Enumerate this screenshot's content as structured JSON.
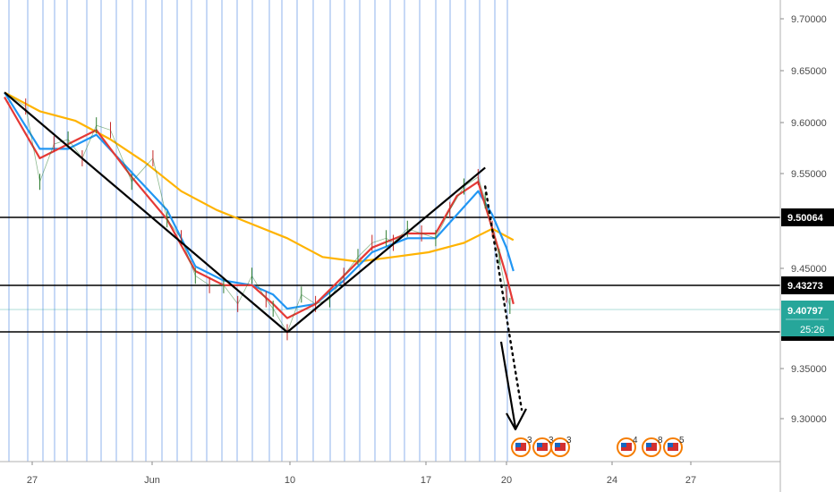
{
  "chart_data": {
    "type": "line",
    "title": "",
    "xlabel": "",
    "ylabel": "",
    "x_tick_labels": [
      "27",
      "Jun",
      "10",
      "17",
      "20",
      "24",
      "27"
    ],
    "y_ticks": [
      "9.70000",
      "9.65000",
      "9.60000",
      "9.55000",
      "9.45000",
      "9.35000",
      "9.30000"
    ],
    "ylim": [
      9.25,
      9.72
    ],
    "grid": "vertical blue session lines",
    "price_path": [
      [
        0,
        9.635
      ],
      [
        3,
        9.62
      ],
      [
        5,
        9.54
      ],
      [
        7,
        9.58
      ],
      [
        9,
        9.585
      ],
      [
        11,
        9.565
      ],
      [
        13,
        9.6
      ],
      [
        15,
        9.595
      ],
      [
        18,
        9.54
      ],
      [
        21,
        9.565
      ],
      [
        23,
        9.5
      ],
      [
        25,
        9.48
      ],
      [
        27,
        9.44
      ],
      [
        29,
        9.43
      ],
      [
        31,
        9.43
      ],
      [
        33,
        9.41
      ],
      [
        35,
        9.44
      ],
      [
        37,
        9.415
      ],
      [
        38,
        9.405
      ],
      [
        40,
        9.38
      ],
      [
        42,
        9.42
      ],
      [
        44,
        9.41
      ],
      [
        46,
        9.415
      ],
      [
        48,
        9.44
      ],
      [
        50,
        9.46
      ],
      [
        52,
        9.475
      ],
      [
        54,
        9.48
      ],
      [
        55,
        9.475
      ],
      [
        57,
        9.49
      ],
      [
        59,
        9.485
      ],
      [
        61,
        9.48
      ],
      [
        63,
        9.51
      ],
      [
        65,
        9.535
      ],
      [
        67,
        9.545
      ],
      [
        68,
        9.52
      ],
      [
        69,
        9.49
      ],
      [
        70,
        9.46
      ],
      [
        71,
        9.42
      ],
      [
        71.5,
        9.408
      ]
    ],
    "series": [
      {
        "name": "",
        "color": "#e53935",
        "role": "fast moving average",
        "values": [
          [
            0,
            9.63
          ],
          [
            5,
            9.565
          ],
          [
            9,
            9.58
          ],
          [
            13,
            9.595
          ],
          [
            18,
            9.545
          ],
          [
            23,
            9.5
          ],
          [
            27,
            9.445
          ],
          [
            31,
            9.43
          ],
          [
            35,
            9.43
          ],
          [
            38,
            9.41
          ],
          [
            40,
            9.395
          ],
          [
            44,
            9.41
          ],
          [
            48,
            9.44
          ],
          [
            52,
            9.47
          ],
          [
            57,
            9.485
          ],
          [
            61,
            9.485
          ],
          [
            64,
            9.525
          ],
          [
            67,
            9.54
          ],
          [
            69,
            9.49
          ],
          [
            71,
            9.44
          ],
          [
            72,
            9.41
          ]
        ]
      },
      {
        "name": "",
        "color": "#2196f3",
        "role": "medium moving average",
        "values": [
          [
            0,
            9.635
          ],
          [
            5,
            9.575
          ],
          [
            9,
            9.575
          ],
          [
            13,
            9.59
          ],
          [
            18,
            9.55
          ],
          [
            23,
            9.51
          ],
          [
            27,
            9.45
          ],
          [
            31,
            9.435
          ],
          [
            35,
            9.43
          ],
          [
            38,
            9.42
          ],
          [
            40,
            9.405
          ],
          [
            44,
            9.41
          ],
          [
            48,
            9.435
          ],
          [
            52,
            9.465
          ],
          [
            57,
            9.48
          ],
          [
            61,
            9.48
          ],
          [
            64,
            9.505
          ],
          [
            67,
            9.53
          ],
          [
            69,
            9.505
          ],
          [
            71,
            9.47
          ],
          [
            72,
            9.445
          ]
        ]
      },
      {
        "name": "",
        "color": "#ffb300",
        "role": "slow moving average",
        "values": [
          [
            0,
            9.635
          ],
          [
            5,
            9.615
          ],
          [
            10,
            9.605
          ],
          [
            15,
            9.585
          ],
          [
            20,
            9.56
          ],
          [
            25,
            9.53
          ],
          [
            30,
            9.51
          ],
          [
            35,
            9.495
          ],
          [
            40,
            9.48
          ],
          [
            45,
            9.46
          ],
          [
            50,
            9.455
          ],
          [
            55,
            9.46
          ],
          [
            60,
            9.465
          ],
          [
            65,
            9.475
          ],
          [
            69,
            9.49
          ],
          [
            72,
            9.478
          ]
        ]
      }
    ],
    "horizontal_levels": [
      "9.50064",
      "9.43273",
      "9.38579"
    ],
    "current_price": "9.40797",
    "countdown": "25:26",
    "trend_lines": [
      {
        "from": [
          0,
          9.635
        ],
        "to": [
          40,
          9.38
        ]
      },
      {
        "from": [
          40,
          9.38
        ],
        "to": [
          68,
          9.555
        ]
      }
    ],
    "projection": {
      "from": [
        68,
        9.535
      ],
      "to": [
        73,
        9.28
      ]
    },
    "event_markers": [
      {
        "label": "3"
      },
      {
        "label": "3"
      },
      {
        "label": "3"
      },
      {
        "label": "4"
      },
      {
        "label": "8"
      },
      {
        "label": "5"
      }
    ],
    "colors": {
      "price_line": "#e53935",
      "gridline": "#8fb3ec",
      "level_line": "#000000",
      "current_price_bg": "#26a69a",
      "badge_bg": "#000000",
      "badge_fg": "#ffffff",
      "ma_slow": "#ffb300",
      "ma_medium": "#2196f3"
    }
  }
}
